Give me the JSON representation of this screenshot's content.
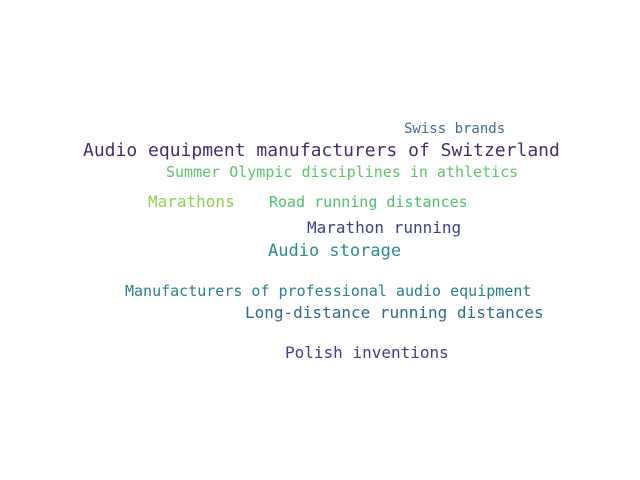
{
  "words": [
    {
      "text": "Swiss brands",
      "color": "#3b6e8f"
    },
    {
      "text": "Audio equipment manufacturers of Switzerland",
      "color": "#472d6b"
    },
    {
      "text": "Summer Olympic disciplines in athletics",
      "color": "#5fc36a"
    },
    {
      "text": "Marathons",
      "color": "#8fd14f"
    },
    {
      "text": "Road running distances",
      "color": "#4cc26c"
    },
    {
      "text": "Marathon running",
      "color": "#3d3f87"
    },
    {
      "text": "Audio storage",
      "color": "#2a8c8c"
    },
    {
      "text": "Manufacturers of professional audio equipment",
      "color": "#2a7f8e"
    },
    {
      "text": "Long-distance running distances",
      "color": "#2f6b8e"
    },
    {
      "text": "Polish inventions",
      "color": "#433e85"
    }
  ]
}
